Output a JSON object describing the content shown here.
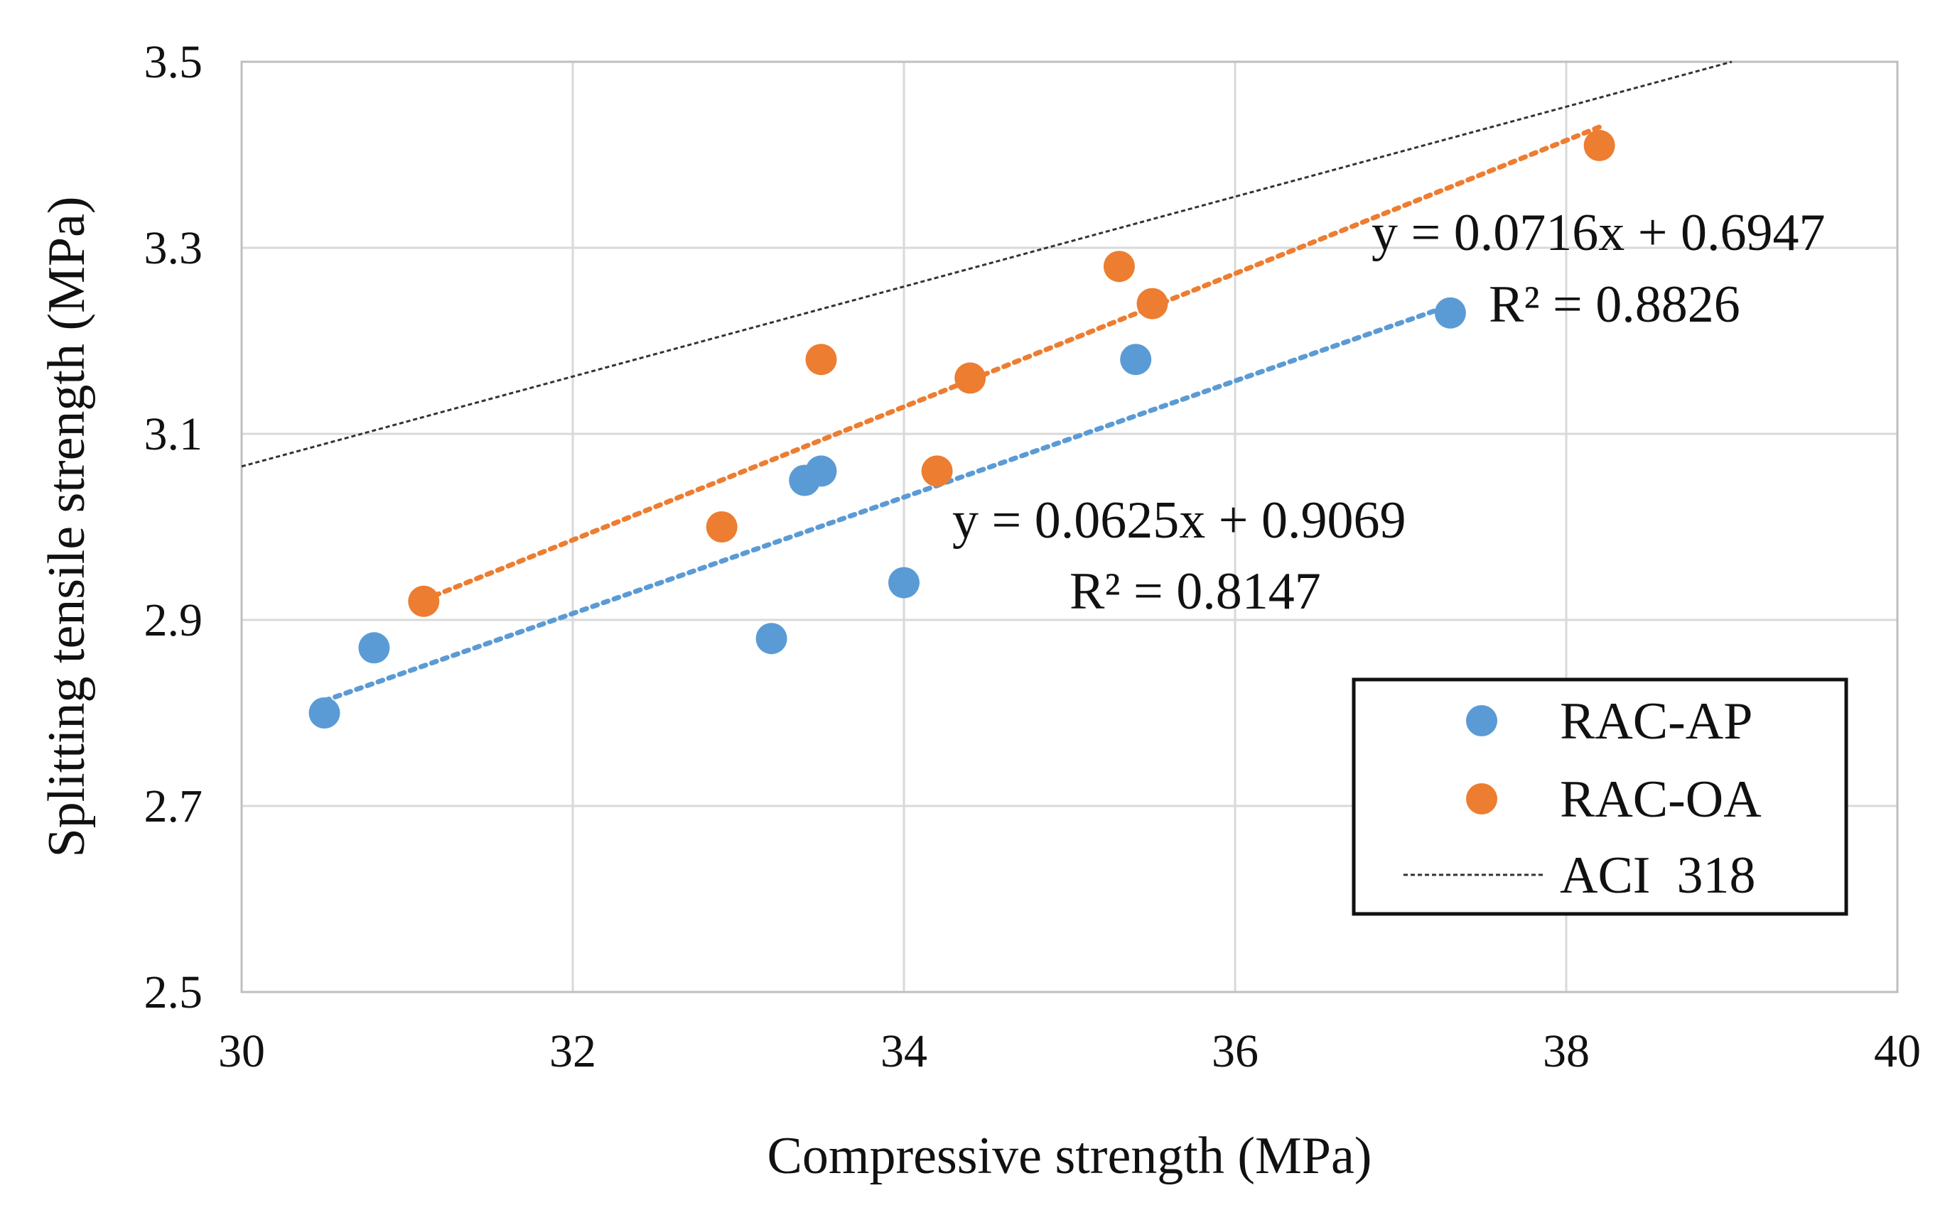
{
  "chart_data": {
    "type": "scatter",
    "xlabel": "Compressive strength (MPa)",
    "ylabel": "Splitting tensile strength (MPa)",
    "xlim": [
      30,
      40
    ],
    "ylim": [
      2.5,
      3.5
    ],
    "grid": true,
    "x_ticks": [
      30,
      32,
      34,
      36,
      38,
      40
    ],
    "y_ticks": [
      2.5,
      2.7,
      2.9,
      3.1,
      3.3,
      3.5
    ],
    "x_tick_labels": [
      "30",
      "32",
      "34",
      "36",
      "38",
      "40"
    ],
    "y_tick_labels": [
      "2.5",
      "2.7",
      "2.9",
      "3.1",
      "3.3",
      "3.5"
    ],
    "legend_position": "bottom-right",
    "series": [
      {
        "name": "RAC-AP",
        "color": "#5b9bd5",
        "points": [
          {
            "x": 30.5,
            "y": 2.8
          },
          {
            "x": 30.8,
            "y": 2.87
          },
          {
            "x": 33.2,
            "y": 2.88
          },
          {
            "x": 33.4,
            "y": 3.05
          },
          {
            "x": 33.5,
            "y": 3.06
          },
          {
            "x": 34.0,
            "y": 2.94
          },
          {
            "x": 35.4,
            "y": 3.18
          },
          {
            "x": 37.3,
            "y": 3.23
          }
        ],
        "trendline": {
          "slope": 0.0625,
          "intercept": 0.9069,
          "x_range": [
            30.5,
            37.3
          ],
          "equation": "y = 0.0625x + 0.9069",
          "r2": "R² = 0.8147"
        }
      },
      {
        "name": "RAC-OA",
        "color": "#ed7d31",
        "points": [
          {
            "x": 31.1,
            "y": 2.92
          },
          {
            "x": 32.9,
            "y": 3.0
          },
          {
            "x": 33.5,
            "y": 3.18
          },
          {
            "x": 34.2,
            "y": 3.06
          },
          {
            "x": 34.4,
            "y": 3.16
          },
          {
            "x": 35.3,
            "y": 3.28
          },
          {
            "x": 35.5,
            "y": 3.24
          },
          {
            "x": 38.2,
            "y": 3.41
          }
        ],
        "trendline": {
          "slope": 0.0716,
          "intercept": 0.6947,
          "x_range": [
            31.1,
            38.2
          ],
          "equation": "y = 0.0716x + 0.6947",
          "r2": "R² = 0.8826"
        }
      },
      {
        "name": "ACI  318",
        "color": "#333333",
        "line": {
          "points": [
            {
              "x": 30.0,
              "y": 3.065
            },
            {
              "x": 39.0,
              "y": 3.5
            }
          ]
        }
      }
    ]
  }
}
